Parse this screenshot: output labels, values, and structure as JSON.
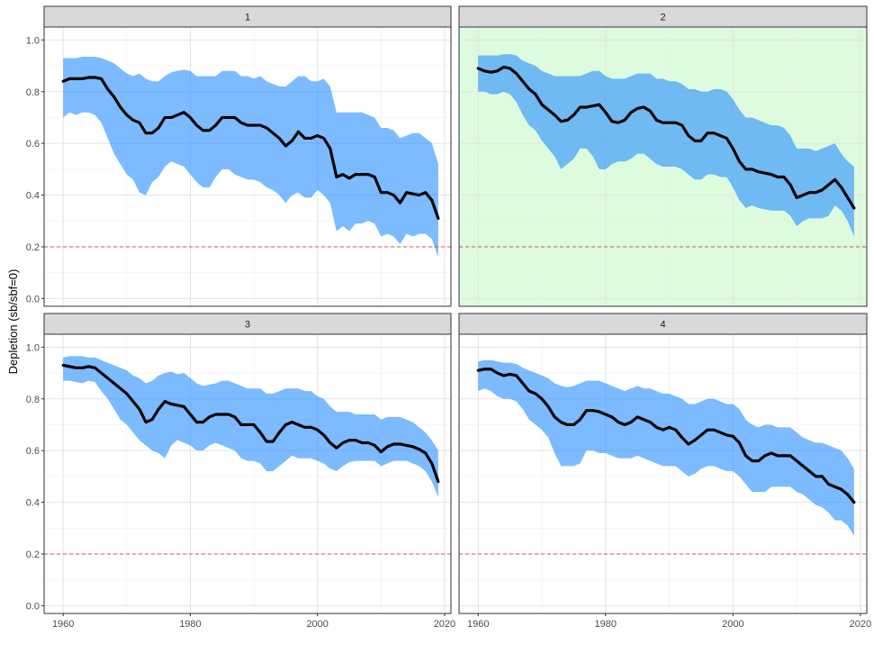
{
  "ylabel": "Depletion (sb/sbf=0)",
  "colors": {
    "band": "#2b92ff",
    "line": "#000000",
    "reference": "#d9534f",
    "highlight_bg": "#ddfbdd",
    "strip_bg": "#d9d9d9"
  },
  "chart_data": {
    "type": "area",
    "xlim": [
      1957,
      2021
    ],
    "ylim": [
      -0.03,
      1.05
    ],
    "x_ticks": [
      1960,
      1980,
      2000,
      2020
    ],
    "y_ticks": [
      0.0,
      0.2,
      0.4,
      0.6,
      0.8,
      1.0
    ],
    "y_tick_labels": [
      "0.0",
      "0.2",
      "0.4",
      "0.6",
      "0.8",
      "1.0"
    ],
    "reference_line": 0.2,
    "grid": true,
    "years": [
      1960,
      1961,
      1962,
      1963,
      1964,
      1965,
      1966,
      1967,
      1968,
      1969,
      1970,
      1971,
      1972,
      1973,
      1974,
      1975,
      1976,
      1977,
      1978,
      1979,
      1980,
      1981,
      1982,
      1983,
      1984,
      1985,
      1986,
      1987,
      1988,
      1989,
      1990,
      1991,
      1992,
      1993,
      1994,
      1995,
      1996,
      1997,
      1998,
      1999,
      2000,
      2001,
      2002,
      2003,
      2004,
      2005,
      2006,
      2007,
      2008,
      2009,
      2010,
      2011,
      2012,
      2013,
      2014,
      2015,
      2016,
      2017,
      2018,
      2019
    ],
    "panels": [
      {
        "label": "1",
        "highlighted": false,
        "median": [
          0.84,
          0.85,
          0.85,
          0.85,
          0.855,
          0.855,
          0.85,
          0.81,
          0.78,
          0.74,
          0.71,
          0.69,
          0.68,
          0.64,
          0.64,
          0.66,
          0.7,
          0.7,
          0.71,
          0.72,
          0.7,
          0.67,
          0.65,
          0.65,
          0.67,
          0.7,
          0.7,
          0.7,
          0.68,
          0.67,
          0.67,
          0.67,
          0.66,
          0.64,
          0.62,
          0.59,
          0.61,
          0.645,
          0.62,
          0.62,
          0.63,
          0.62,
          0.58,
          0.47,
          0.48,
          0.465,
          0.48,
          0.48,
          0.48,
          0.47,
          0.41,
          0.41,
          0.4,
          0.37,
          0.41,
          0.405,
          0.4,
          0.41,
          0.38,
          0.31
        ],
        "lower": [
          0.7,
          0.72,
          0.71,
          0.72,
          0.72,
          0.71,
          0.68,
          0.62,
          0.56,
          0.52,
          0.48,
          0.46,
          0.41,
          0.4,
          0.45,
          0.47,
          0.51,
          0.53,
          0.52,
          0.51,
          0.48,
          0.45,
          0.43,
          0.43,
          0.47,
          0.5,
          0.5,
          0.48,
          0.47,
          0.46,
          0.46,
          0.45,
          0.43,
          0.42,
          0.4,
          0.37,
          0.4,
          0.41,
          0.39,
          0.39,
          0.42,
          0.4,
          0.37,
          0.26,
          0.28,
          0.26,
          0.29,
          0.29,
          0.3,
          0.29,
          0.24,
          0.25,
          0.24,
          0.21,
          0.25,
          0.24,
          0.25,
          0.25,
          0.23,
          0.16
        ],
        "upper": [
          0.93,
          0.93,
          0.93,
          0.935,
          0.935,
          0.935,
          0.93,
          0.92,
          0.91,
          0.89,
          0.87,
          0.86,
          0.87,
          0.85,
          0.84,
          0.84,
          0.86,
          0.875,
          0.88,
          0.885,
          0.88,
          0.86,
          0.86,
          0.86,
          0.86,
          0.88,
          0.88,
          0.88,
          0.86,
          0.86,
          0.85,
          0.86,
          0.84,
          0.83,
          0.82,
          0.82,
          0.84,
          0.86,
          0.86,
          0.84,
          0.84,
          0.85,
          0.82,
          0.72,
          0.72,
          0.72,
          0.72,
          0.72,
          0.71,
          0.7,
          0.66,
          0.66,
          0.65,
          0.62,
          0.63,
          0.64,
          0.64,
          0.62,
          0.6,
          0.52
        ]
      },
      {
        "label": "2",
        "highlighted": true,
        "median": [
          0.89,
          0.88,
          0.875,
          0.88,
          0.895,
          0.89,
          0.87,
          0.84,
          0.81,
          0.79,
          0.75,
          0.73,
          0.71,
          0.685,
          0.69,
          0.71,
          0.74,
          0.74,
          0.745,
          0.75,
          0.72,
          0.685,
          0.68,
          0.69,
          0.72,
          0.735,
          0.74,
          0.725,
          0.69,
          0.68,
          0.68,
          0.68,
          0.67,
          0.63,
          0.61,
          0.61,
          0.64,
          0.64,
          0.63,
          0.62,
          0.58,
          0.53,
          0.5,
          0.5,
          0.49,
          0.485,
          0.48,
          0.47,
          0.47,
          0.44,
          0.39,
          0.4,
          0.41,
          0.41,
          0.42,
          0.44,
          0.46,
          0.43,
          0.39,
          0.35
        ],
        "lower": [
          0.8,
          0.8,
          0.79,
          0.79,
          0.8,
          0.79,
          0.76,
          0.71,
          0.67,
          0.65,
          0.61,
          0.58,
          0.55,
          0.5,
          0.52,
          0.54,
          0.58,
          0.58,
          0.55,
          0.5,
          0.5,
          0.52,
          0.53,
          0.53,
          0.54,
          0.56,
          0.56,
          0.54,
          0.52,
          0.51,
          0.51,
          0.51,
          0.5,
          0.48,
          0.46,
          0.46,
          0.48,
          0.48,
          0.47,
          0.47,
          0.43,
          0.38,
          0.35,
          0.36,
          0.35,
          0.345,
          0.34,
          0.34,
          0.34,
          0.32,
          0.28,
          0.3,
          0.31,
          0.31,
          0.31,
          0.32,
          0.36,
          0.34,
          0.3,
          0.24
        ],
        "upper": [
          0.94,
          0.94,
          0.94,
          0.94,
          0.945,
          0.945,
          0.94,
          0.92,
          0.91,
          0.9,
          0.88,
          0.87,
          0.86,
          0.86,
          0.86,
          0.86,
          0.86,
          0.87,
          0.88,
          0.88,
          0.86,
          0.85,
          0.85,
          0.85,
          0.86,
          0.87,
          0.87,
          0.87,
          0.85,
          0.85,
          0.84,
          0.84,
          0.83,
          0.81,
          0.81,
          0.8,
          0.8,
          0.81,
          0.81,
          0.8,
          0.77,
          0.73,
          0.7,
          0.7,
          0.69,
          0.68,
          0.67,
          0.67,
          0.66,
          0.63,
          0.58,
          0.58,
          0.58,
          0.57,
          0.58,
          0.59,
          0.6,
          0.56,
          0.53,
          0.51
        ]
      },
      {
        "label": "3",
        "highlighted": false,
        "median": [
          0.93,
          0.925,
          0.92,
          0.92,
          0.925,
          0.92,
          0.9,
          0.88,
          0.86,
          0.84,
          0.82,
          0.79,
          0.76,
          0.71,
          0.72,
          0.76,
          0.79,
          0.78,
          0.775,
          0.77,
          0.74,
          0.71,
          0.71,
          0.73,
          0.74,
          0.74,
          0.74,
          0.73,
          0.7,
          0.7,
          0.7,
          0.67,
          0.635,
          0.635,
          0.67,
          0.7,
          0.71,
          0.7,
          0.69,
          0.69,
          0.68,
          0.66,
          0.63,
          0.61,
          0.63,
          0.64,
          0.64,
          0.63,
          0.63,
          0.62,
          0.595,
          0.615,
          0.625,
          0.625,
          0.62,
          0.615,
          0.605,
          0.59,
          0.55,
          0.48
        ],
        "lower": [
          0.87,
          0.87,
          0.865,
          0.86,
          0.87,
          0.865,
          0.83,
          0.8,
          0.76,
          0.72,
          0.7,
          0.67,
          0.64,
          0.62,
          0.6,
          0.59,
          0.57,
          0.62,
          0.64,
          0.63,
          0.62,
          0.6,
          0.6,
          0.62,
          0.63,
          0.62,
          0.61,
          0.6,
          0.57,
          0.56,
          0.56,
          0.55,
          0.52,
          0.52,
          0.54,
          0.56,
          0.58,
          0.57,
          0.57,
          0.57,
          0.56,
          0.55,
          0.53,
          0.52,
          0.54,
          0.555,
          0.56,
          0.56,
          0.56,
          0.56,
          0.54,
          0.55,
          0.56,
          0.56,
          0.56,
          0.55,
          0.54,
          0.52,
          0.48,
          0.42
        ],
        "upper": [
          0.96,
          0.965,
          0.965,
          0.965,
          0.96,
          0.96,
          0.95,
          0.94,
          0.93,
          0.92,
          0.91,
          0.89,
          0.88,
          0.86,
          0.87,
          0.89,
          0.9,
          0.905,
          0.895,
          0.9,
          0.88,
          0.86,
          0.85,
          0.855,
          0.86,
          0.87,
          0.87,
          0.86,
          0.85,
          0.84,
          0.84,
          0.84,
          0.82,
          0.82,
          0.83,
          0.84,
          0.84,
          0.84,
          0.83,
          0.83,
          0.81,
          0.8,
          0.77,
          0.75,
          0.75,
          0.75,
          0.74,
          0.74,
          0.74,
          0.74,
          0.72,
          0.73,
          0.73,
          0.73,
          0.72,
          0.71,
          0.69,
          0.67,
          0.64,
          0.6
        ]
      },
      {
        "label": "4",
        "highlighted": false,
        "median": [
          0.91,
          0.915,
          0.915,
          0.9,
          0.89,
          0.895,
          0.89,
          0.86,
          0.83,
          0.82,
          0.8,
          0.77,
          0.73,
          0.71,
          0.7,
          0.7,
          0.72,
          0.755,
          0.755,
          0.75,
          0.74,
          0.73,
          0.71,
          0.7,
          0.71,
          0.73,
          0.72,
          0.71,
          0.69,
          0.68,
          0.69,
          0.68,
          0.65,
          0.625,
          0.64,
          0.66,
          0.68,
          0.68,
          0.67,
          0.66,
          0.655,
          0.63,
          0.58,
          0.56,
          0.56,
          0.58,
          0.59,
          0.58,
          0.58,
          0.58,
          0.56,
          0.54,
          0.52,
          0.5,
          0.5,
          0.47,
          0.46,
          0.45,
          0.43,
          0.4
        ],
        "lower": [
          0.83,
          0.84,
          0.83,
          0.81,
          0.8,
          0.8,
          0.79,
          0.76,
          0.72,
          0.7,
          0.68,
          0.65,
          0.59,
          0.54,
          0.54,
          0.54,
          0.55,
          0.6,
          0.6,
          0.59,
          0.59,
          0.58,
          0.57,
          0.57,
          0.57,
          0.58,
          0.57,
          0.56,
          0.55,
          0.54,
          0.54,
          0.54,
          0.52,
          0.5,
          0.51,
          0.53,
          0.54,
          0.54,
          0.53,
          0.52,
          0.52,
          0.5,
          0.47,
          0.44,
          0.44,
          0.44,
          0.46,
          0.46,
          0.46,
          0.46,
          0.44,
          0.43,
          0.41,
          0.39,
          0.38,
          0.36,
          0.33,
          0.33,
          0.31,
          0.27
        ],
        "upper": [
          0.945,
          0.95,
          0.95,
          0.945,
          0.94,
          0.94,
          0.935,
          0.92,
          0.91,
          0.9,
          0.89,
          0.88,
          0.86,
          0.85,
          0.845,
          0.85,
          0.86,
          0.87,
          0.87,
          0.87,
          0.86,
          0.85,
          0.84,
          0.83,
          0.84,
          0.85,
          0.84,
          0.84,
          0.83,
          0.82,
          0.82,
          0.81,
          0.8,
          0.78,
          0.78,
          0.79,
          0.8,
          0.8,
          0.79,
          0.78,
          0.78,
          0.76,
          0.72,
          0.7,
          0.69,
          0.7,
          0.7,
          0.69,
          0.69,
          0.69,
          0.67,
          0.65,
          0.64,
          0.63,
          0.63,
          0.62,
          0.61,
          0.6,
          0.57,
          0.53
        ]
      }
    ]
  }
}
